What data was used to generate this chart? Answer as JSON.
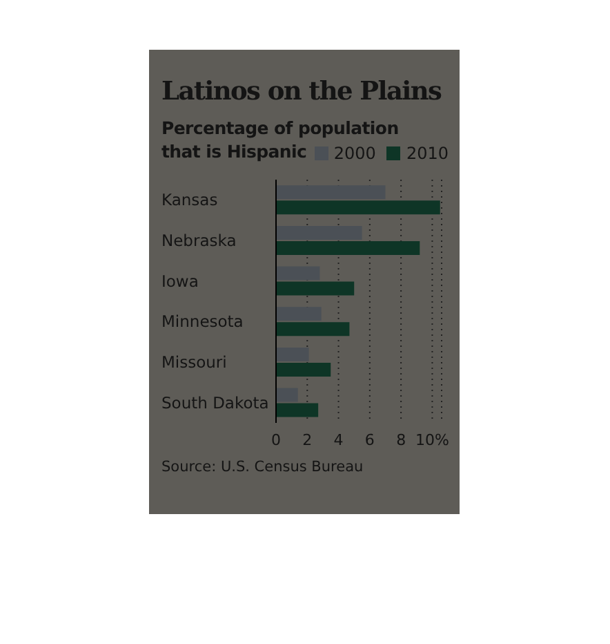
{
  "chart_data": {
    "type": "bar",
    "orientation": "horizontal",
    "title": "Latinos on the Plains",
    "subtitle": "Percentage of population that is Hispanic",
    "categories": [
      "Kansas",
      "Nebraska",
      "Iowa",
      "Minnesota",
      "Missouri",
      "South Dakota"
    ],
    "series": [
      {
        "name": "2000",
        "color": "#4b5056",
        "values": [
          7.0,
          5.5,
          2.8,
          2.9,
          2.1,
          1.4
        ]
      },
      {
        "name": "2010",
        "color": "#0e3526",
        "values": [
          10.5,
          9.2,
          5.0,
          4.7,
          3.5,
          2.7
        ]
      }
    ],
    "xlim": [
      0,
      10.6
    ],
    "xticks": [
      0,
      2,
      4,
      6,
      8,
      {
        "value": 10,
        "label": "10%"
      }
    ],
    "grid": "x",
    "legend": "top right",
    "annotations": [
      "Source: U.S. Census Bureau"
    ]
  }
}
